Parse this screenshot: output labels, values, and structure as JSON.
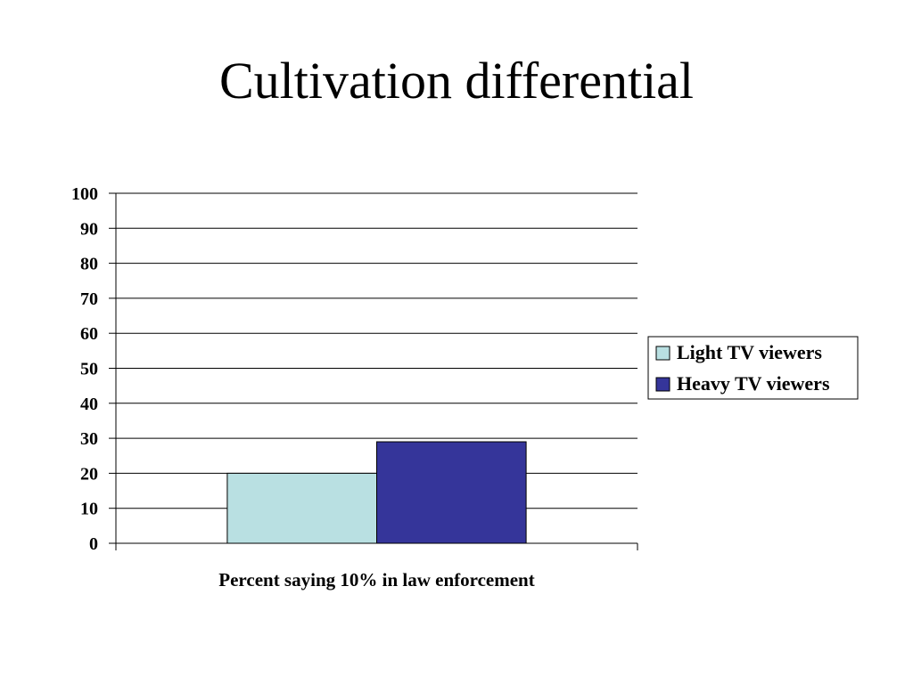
{
  "slide": {
    "title": "Cultivation differential"
  },
  "chart_data": {
    "type": "bar",
    "title": "",
    "categories": [
      "Percent saying 10% in law enforcement"
    ],
    "xlabel": "",
    "ylabel": "",
    "ylim": [
      0,
      100
    ],
    "yticks": [
      "0",
      "10",
      "20",
      "30",
      "40",
      "50",
      "60",
      "70",
      "80",
      "90",
      "100"
    ],
    "grid": true,
    "legend_position": "right",
    "series": [
      {
        "name": "Light TV viewers",
        "values": [
          20
        ],
        "color": "#b9e0e2"
      },
      {
        "name": "Heavy TV viewers",
        "values": [
          29
        ],
        "color": "#35359a"
      }
    ]
  }
}
